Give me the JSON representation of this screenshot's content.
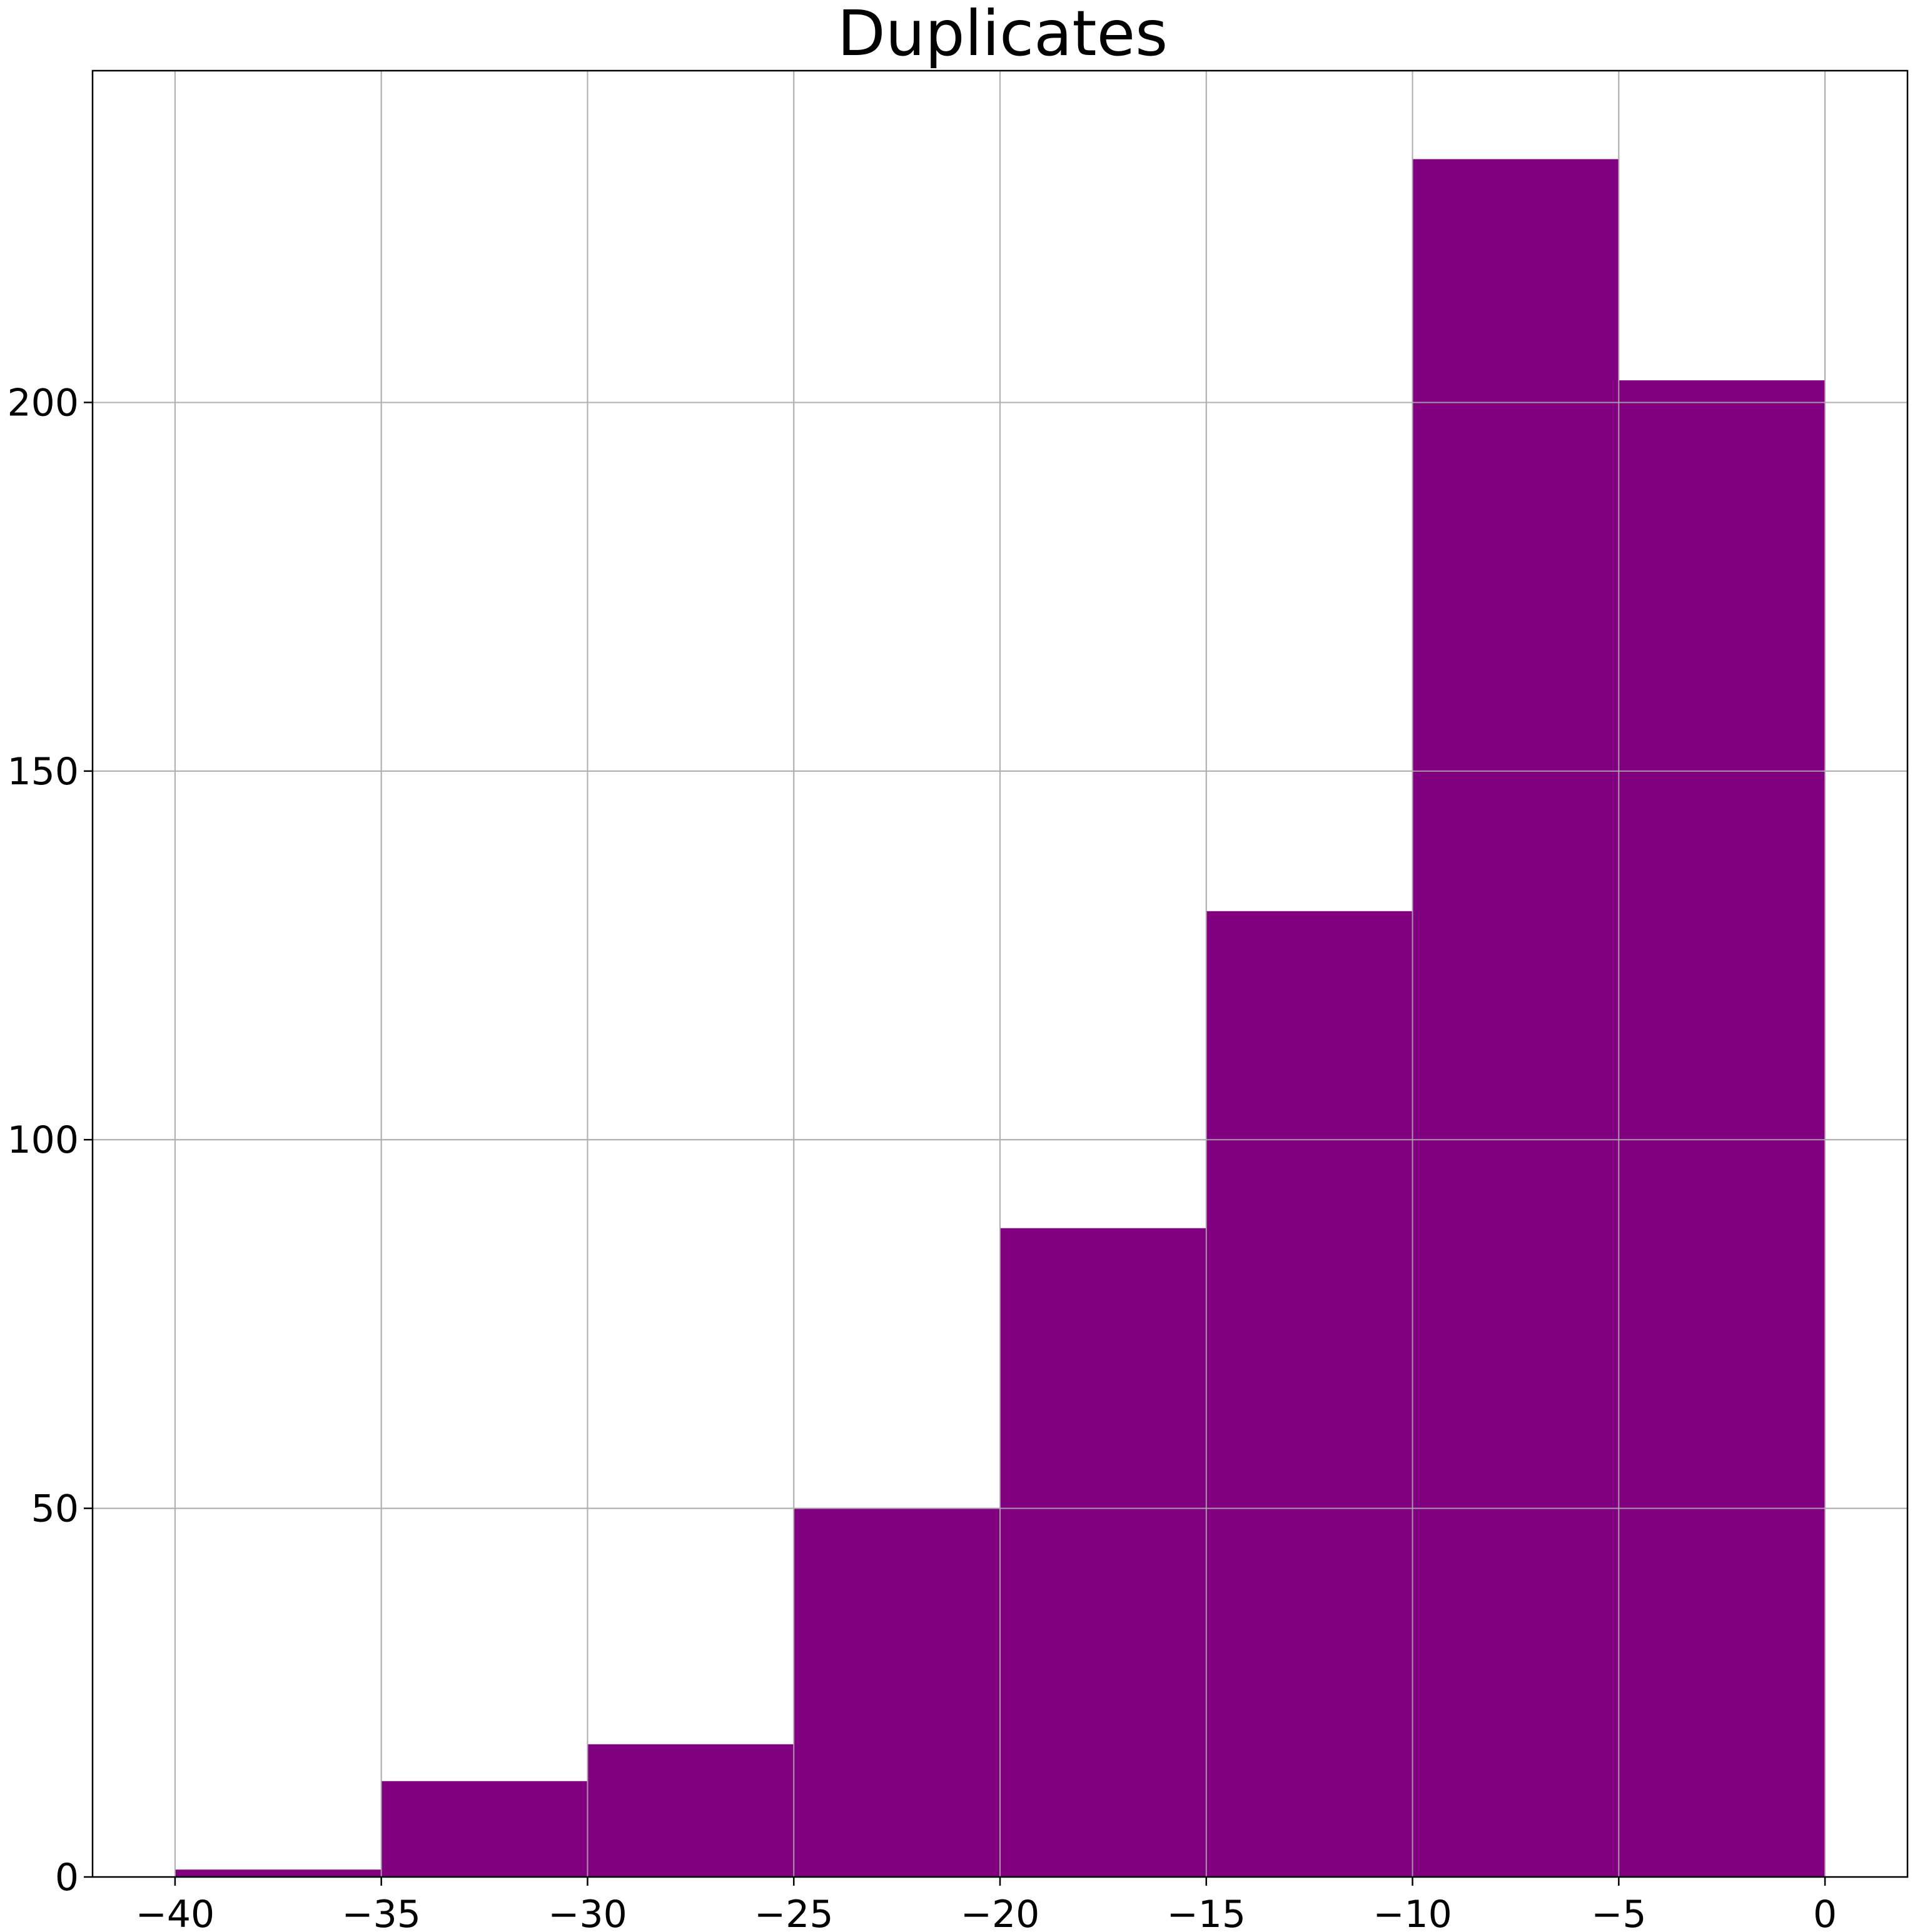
{
  "chart_data": {
    "type": "histogram",
    "title": "Duplicates",
    "xlabel": "",
    "ylabel": "",
    "bin_edges": [
      -40,
      -35,
      -30,
      -25,
      -20,
      -15,
      -10,
      -5,
      0
    ],
    "values": [
      1,
      13,
      18,
      50,
      88,
      131,
      233,
      203
    ],
    "xlim": [
      -42,
      2
    ],
    "ylim": [
      0,
      245
    ],
    "xticks": [
      -40,
      -35,
      -30,
      -25,
      -20,
      -15,
      -10,
      -5,
      0
    ],
    "xtick_labels": [
      "−40",
      "−35",
      "−30",
      "−25",
      "−20",
      "−15",
      "−10",
      "−5",
      "0"
    ],
    "yticks": [
      0,
      50,
      100,
      150,
      200
    ],
    "ytick_labels": [
      "0",
      "50",
      "100",
      "150",
      "200"
    ],
    "grid": true,
    "bar_color": "#800080",
    "grid_color": "#b0b0b0"
  }
}
